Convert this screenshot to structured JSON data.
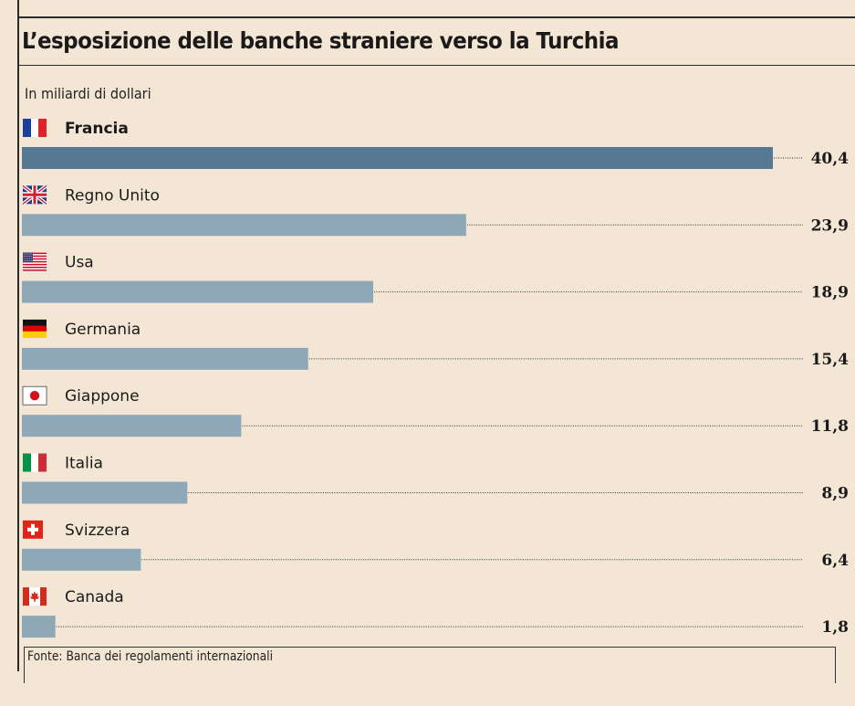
{
  "chart_data": {
    "type": "bar",
    "orientation": "horizontal",
    "title": "L’esposizione delle banche straniere verso la Turchia",
    "subtitle": "In miliardi di dollari",
    "source": "Fonte: Banca dei regolamenti internazionali",
    "categories": [
      "Francia",
      "Regno Unito",
      "Usa",
      "Germania",
      "Giappone",
      "Italia",
      "Svizzera",
      "Canada"
    ],
    "values": [
      40.4,
      23.9,
      18.9,
      15.4,
      11.8,
      8.9,
      6.4,
      1.8
    ],
    "value_labels": [
      "40,4",
      "23,9",
      "18,9",
      "15,4",
      "11,8",
      "8,9",
      "6,4",
      "1,8"
    ],
    "flags": [
      "france-flag-icon",
      "uk-flag-icon",
      "usa-flag-icon",
      "germany-flag-icon",
      "japan-flag-icon",
      "italy-flag-icon",
      "switzerland-flag-icon",
      "canada-flag-icon"
    ],
    "highlight_index": 0,
    "colors": {
      "highlight": "#567a96",
      "bar": "#8fa8b8",
      "background": "#f3e6d4",
      "leader": "#333333"
    },
    "xlim": [
      0,
      40.4
    ],
    "grid": false,
    "legend": "none"
  }
}
